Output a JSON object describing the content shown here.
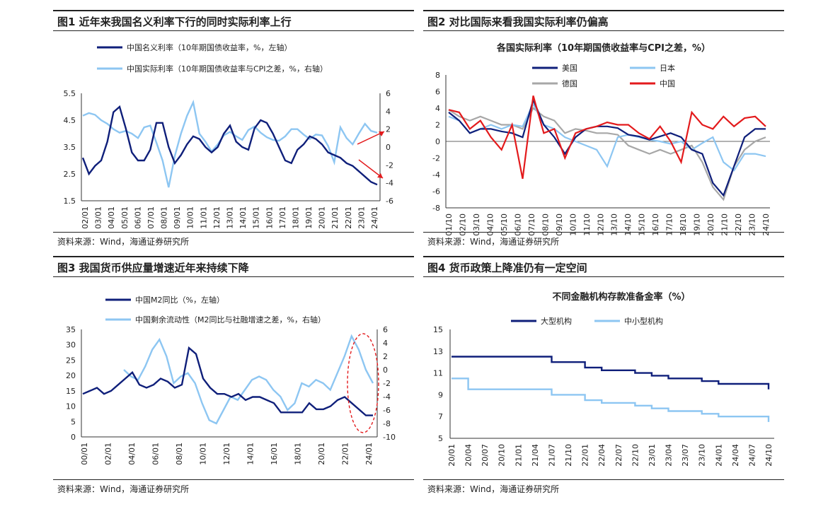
{
  "colors": {
    "dark": "#0f1f7a",
    "light": "#8dc6f2",
    "gray": "#a7a7a7",
    "red": "#e31a1c"
  },
  "panels": [
    {
      "title": "图1  近年来我国名义利率下行的同时实际利率上行",
      "source": "资料来源：Wind，海通证券研究所"
    },
    {
      "title": "图2  对比国际来看我国实际利率仍偏高",
      "source": "资料来源：Wind，海通证券研究所"
    },
    {
      "title": "图3  我国货币供应量增速近年来持续下降",
      "source": "资料来源：Wind，海通证券研究所"
    },
    {
      "title": "图4  货币政策上降准仍有一定空间",
      "source": "资料来源：Wind，海通证券研究所"
    }
  ],
  "chart_data": [
    {
      "type": "line",
      "legend": [
        "中国名义利率（10年期国债收益率，%，左轴）",
        "中国实际利率（10年期国债收益率与CPI之差，%，右轴）"
      ],
      "x_ticks": [
        "02/01",
        "03/01",
        "04/01",
        "05/01",
        "06/01",
        "07/01",
        "08/01",
        "09/01",
        "10/01",
        "11/01",
        "12/01",
        "13/01",
        "14/01",
        "15/01",
        "16/01",
        "17/01",
        "18/01",
        "19/01",
        "20/01",
        "21/01",
        "22/01",
        "23/01",
        "24/01"
      ],
      "y_left": {
        "range": [
          1.5,
          5.5
        ],
        "ticks": [
          "5.5",
          "4.5",
          "3.5",
          "2.5",
          "1.5"
        ]
      },
      "y_right": {
        "range": [
          -6,
          6
        ],
        "ticks": [
          "6",
          "4",
          "2",
          "0",
          "-2",
          "-4",
          "-6"
        ]
      },
      "series": [
        {
          "name": "中国名义利率（10年期国债收益率，%，左轴）",
          "axis": "left",
          "values": [
            3.1,
            2.5,
            2.8,
            3.0,
            3.7,
            4.8,
            5.0,
            4.2,
            3.3,
            3.0,
            3.0,
            3.4,
            4.4,
            4.4,
            3.5,
            2.9,
            3.2,
            3.6,
            3.9,
            3.8,
            3.5,
            3.3,
            3.5,
            4.0,
            4.3,
            3.7,
            3.5,
            3.4,
            4.2,
            4.5,
            4.4,
            4.0,
            3.5,
            3.0,
            2.9,
            3.4,
            3.6,
            3.9,
            3.8,
            3.6,
            3.3,
            3.2,
            3.1,
            2.9,
            2.8,
            2.6,
            2.4,
            2.2,
            2.1
          ]
        },
        {
          "name": "中国实际利率（10年期国债收益率与CPI之差，%，右轴）",
          "axis": "right",
          "values": [
            3.5,
            3.8,
            3.6,
            3.0,
            2.6,
            2.0,
            1.6,
            1.8,
            1.5,
            1.0,
            2.2,
            2.4,
            0.5,
            -1.5,
            -4.5,
            -1.0,
            1.5,
            3.5,
            5.0,
            1.5,
            0.6,
            -0.5,
            0.3,
            1.3,
            1.7,
            1.2,
            0.8,
            1.9,
            2.3,
            1.6,
            1.1,
            0.8,
            0.7,
            1.2,
            2.0,
            2.0,
            1.4,
            0.9,
            1.4,
            1.3,
            0.1,
            -1.7,
            2.2,
            1.0,
            0.3,
            1.5,
            2.6,
            1.8,
            1.6
          ]
        }
      ]
    },
    {
      "type": "line",
      "title": "各国实际利率（10年期国债收益率与CPI之差，%）",
      "legend": [
        "美国",
        "日本",
        "德国",
        "中国"
      ],
      "x_ticks": [
        "01/10",
        "02/10",
        "03/10",
        "04/10",
        "05/10",
        "06/10",
        "07/10",
        "08/10",
        "09/10",
        "10/10",
        "11/10",
        "12/10",
        "13/10",
        "14/10",
        "15/10",
        "16/10",
        "17/10",
        "18/10",
        "19/10",
        "20/10",
        "21/10",
        "22/10",
        "23/10",
        "24/10"
      ],
      "y": {
        "range": [
          -8,
          8
        ],
        "ticks": [
          "8",
          "6",
          "4",
          "2",
          "0",
          "-2",
          "-4",
          "-6",
          "-8"
        ]
      },
      "series": [
        {
          "name": "美国",
          "values": [
            3.5,
            2.5,
            1.0,
            1.5,
            1.5,
            1.2,
            1.0,
            0.5,
            5.0,
            2.0,
            0.5,
            -1.5,
            0.5,
            1.5,
            1.8,
            1.8,
            1.6,
            0.8,
            0.6,
            0.2,
            0.6,
            1.0,
            0.5,
            -1.0,
            -1.5,
            -5.0,
            -6.5,
            -3.0,
            0.5,
            1.5,
            1.5
          ]
        },
        {
          "name": "日本",
          "values": [
            3.0,
            2.5,
            1.0,
            1.5,
            2.0,
            1.5,
            2.0,
            1.8,
            4.5,
            2.0,
            1.5,
            0.5,
            0.0,
            -0.5,
            -1.0,
            -3.0,
            0.5,
            0.8,
            0.5,
            0.2,
            0.0,
            -0.3,
            0.0,
            -1.0,
            -0.2,
            0.5,
            -2.5,
            -3.5,
            -1.5,
            -1.5,
            -1.8
          ]
        },
        {
          "name": "德国",
          "values": [
            3.8,
            3.0,
            2.5,
            3.0,
            2.5,
            2.0,
            2.0,
            1.5,
            4.0,
            3.0,
            2.5,
            1.0,
            1.5,
            1.3,
            1.0,
            1.0,
            0.8,
            -0.5,
            -1.0,
            -1.5,
            -1.0,
            -1.5,
            -1.0,
            -0.5,
            -2.5,
            -5.5,
            -7.0,
            -3.0,
            -1.0,
            0.0,
            0.5
          ]
        },
        {
          "name": "中国",
          "values": [
            3.8,
            3.5,
            1.5,
            2.5,
            0.5,
            -1.0,
            2.0,
            -4.5,
            5.5,
            1.0,
            1.5,
            -2.0,
            1.0,
            1.5,
            1.8,
            2.3,
            2.0,
            2.0,
            1.0,
            0.3,
            1.8,
            0.0,
            -2.5,
            3.5,
            2.0,
            1.5,
            3.0,
            1.8,
            2.8,
            3.0,
            1.8
          ]
        }
      ]
    },
    {
      "type": "line",
      "legend": [
        "中国M2同比（%，左轴）",
        "中国剩余流动性（M2同比与社融增速之差，%，右轴）"
      ],
      "x_ticks": [
        "00/01",
        "02/01",
        "04/01",
        "06/01",
        "08/01",
        "10/01",
        "12/01",
        "14/01",
        "16/01",
        "18/01",
        "20/01",
        "22/01",
        "24/01"
      ],
      "y_left": {
        "range": [
          0,
          35
        ],
        "ticks": [
          "35",
          "30",
          "25",
          "20",
          "15",
          "10",
          "5",
          "0"
        ]
      },
      "y_right": {
        "range": [
          -10,
          6
        ],
        "ticks": [
          "6",
          "4",
          "2",
          "0",
          "-2",
          "-4",
          "-6",
          "-8",
          "-10"
        ]
      },
      "series": [
        {
          "name": "中国M2同比（%，左轴）",
          "axis": "left",
          "values": [
            14,
            15,
            16,
            14,
            15,
            17,
            19,
            21,
            17,
            16,
            17,
            19,
            18,
            16,
            17,
            29,
            27,
            19,
            16,
            14,
            14,
            13,
            14,
            12,
            13,
            13,
            12,
            11,
            8,
            8,
            8,
            8,
            11,
            9,
            9,
            10,
            12,
            13,
            11,
            9,
            7,
            7
          ]
        },
        {
          "name": "中国剩余流动性（M2同比与社融增速之差，%，右轴）",
          "axis": "right",
          "values": [
            0.0,
            -1.0,
            -1.5,
            0.5,
            3.0,
            4.5,
            2.0,
            -2.0,
            -1.0,
            -0.5,
            -2.0,
            -5.0,
            -7.5,
            -8.0,
            -6.0,
            -4.0,
            -4.5,
            -3.0,
            -1.5,
            -1.0,
            -1.5,
            -3.0,
            -4.0,
            -6.0,
            -5.0,
            -2.0,
            -2.5,
            -1.5,
            -2.0,
            -3.0,
            -0.5,
            2.0,
            5.0,
            3.0,
            0.0,
            -2.0
          ]
        }
      ],
      "annotation": "dashed ellipse around 2022-2024"
    },
    {
      "type": "line",
      "title": "不同金融机构存款准备金率（%）",
      "legend": [
        "大型机构",
        "中小型机构"
      ],
      "x_ticks": [
        "20/01",
        "20/04",
        "20/07",
        "20/10",
        "21/01",
        "21/04",
        "21/07",
        "21/10",
        "22/01",
        "22/04",
        "22/07",
        "22/10",
        "23/01",
        "23/04",
        "23/07",
        "23/10",
        "24/01",
        "24/04",
        "24/07",
        "24/10"
      ],
      "y": {
        "range": [
          5,
          15
        ],
        "ticks": [
          "15",
          "13",
          "11",
          "9",
          "7",
          "5"
        ]
      },
      "series": [
        {
          "name": "大型机构",
          "values": [
            12.5,
            12.5,
            12.5,
            12.5,
            12.5,
            12.5,
            12.0,
            12.0,
            11.5,
            11.25,
            11.25,
            11.0,
            10.75,
            10.5,
            10.5,
            10.25,
            10.0,
            10.0,
            10.0,
            9.5
          ]
        },
        {
          "name": "中小型机构",
          "values": [
            10.5,
            9.5,
            9.5,
            9.5,
            9.5,
            9.5,
            9.0,
            9.0,
            8.5,
            8.25,
            8.25,
            8.0,
            7.75,
            7.5,
            7.5,
            7.25,
            7.0,
            7.0,
            7.0,
            6.5
          ]
        }
      ]
    }
  ]
}
